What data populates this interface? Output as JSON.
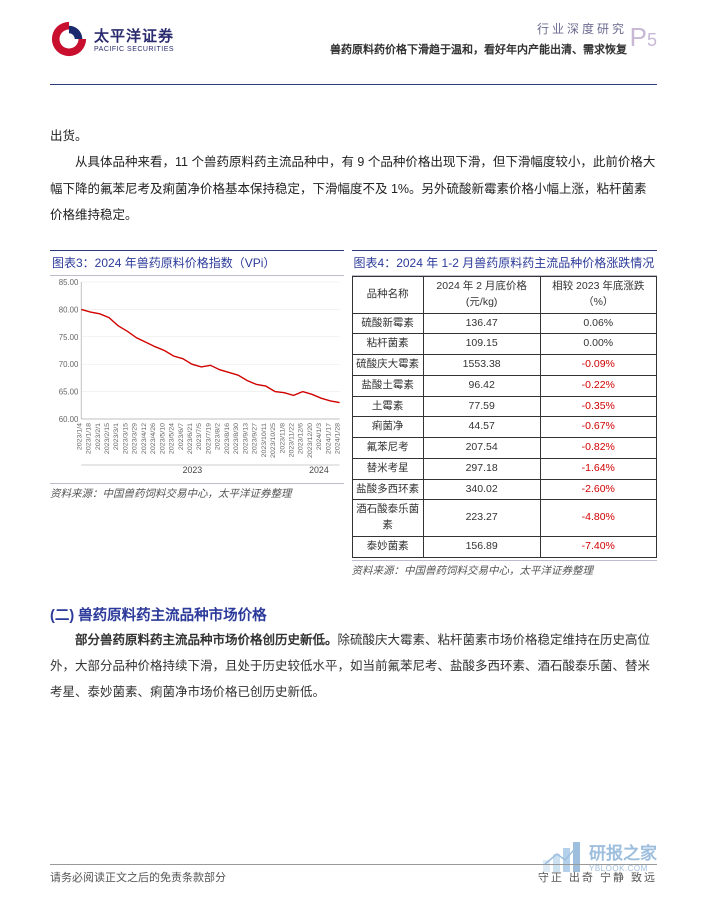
{
  "header": {
    "company_cn": "太平洋证券",
    "company_en": "PACIFIC SECURITIES",
    "category": "行业深度研究",
    "subtitle": "兽药原料药价格下滑趋于温和，看好年内产能出清、需求恢复",
    "page_prefix": "P",
    "page_number": "5",
    "logo_colors": {
      "outer": "#c8102e",
      "inner": "#1a2a6c"
    }
  },
  "paragraph1_lines": [
    "出货。",
    "从具体品种来看，11 个兽药原料药主流品种中，有 9 个品种价格出现下滑，但下滑幅度较小，此前价格大幅下降的氟苯尼考及痢菌净价格基本保持稳定，下滑幅度不及 1%。另外硫酸新霉素价格小幅上涨，粘杆菌素价格维持稳定。"
  ],
  "chart3": {
    "title": "图表3：2024 年兽药原料价格指数（VPi）",
    "type": "line",
    "line_color": "#d00000",
    "axis_color": "#bfbfbf",
    "grid_color": "#e6e6e6",
    "background_color": "#ffffff",
    "ylim": [
      60,
      85
    ],
    "ytick_step": 5,
    "yticks": [
      "60.00",
      "65.00",
      "70.00",
      "75.00",
      "80.00",
      "85.00"
    ],
    "x_labels": [
      "2023/1/4",
      "2023/1/18",
      "2023/2/1",
      "2023/2/15",
      "2023/3/1",
      "2023/3/15",
      "2023/3/29",
      "2023/4/12",
      "2023/4/26",
      "2023/5/10",
      "2023/5/24",
      "2023/6/7",
      "2023/6/21",
      "2023/7/5",
      "2023/7/19",
      "2023/8/2",
      "2023/8/16",
      "2023/8/30",
      "2023/9/13",
      "2023/9/27",
      "2023/10/11",
      "2023/10/25",
      "2023/11/8",
      "2023/11/22",
      "2023/12/6",
      "2023/12/20",
      "2024/1/3",
      "2024/1/17",
      "2024/1/28"
    ],
    "x_category_marks": {
      "2023": 0.43,
      "2024": 0.92
    },
    "values": [
      80.0,
      79.5,
      79.2,
      78.5,
      77.0,
      76.0,
      74.8,
      74.0,
      73.2,
      72.5,
      71.5,
      71.0,
      70.0,
      69.5,
      69.8,
      69.0,
      68.5,
      68.0,
      67.0,
      66.3,
      66.0,
      65.0,
      64.8,
      64.3,
      65.0,
      64.5,
      63.8,
      63.3,
      63.0
    ],
    "source": "资料来源：中国兽药饲料交易中心，太平洋证券整理"
  },
  "chart4": {
    "title": "图表4：2024 年 1-2 月兽药原料药主流品种价格涨跌情况",
    "columns": [
      "品种名称",
      "2024 年 2 月底价格(元/kg)",
      "相较 2023 年底涨跌（%）"
    ],
    "rows": [
      {
        "name": "硫酸新霉素",
        "price": "136.47",
        "chg": "0.06%",
        "neg": false
      },
      {
        "name": "粘杆菌素",
        "price": "109.15",
        "chg": "0.00%",
        "neg": false
      },
      {
        "name": "硫酸庆大霉素",
        "price": "1553.38",
        "chg": "-0.09%",
        "neg": true
      },
      {
        "name": "盐酸土霉素",
        "price": "96.42",
        "chg": "-0.22%",
        "neg": true
      },
      {
        "name": "土霉素",
        "price": "77.59",
        "chg": "-0.35%",
        "neg": true
      },
      {
        "name": "痢菌净",
        "price": "44.57",
        "chg": "-0.67%",
        "neg": true
      },
      {
        "name": "氟苯尼考",
        "price": "207.54",
        "chg": "-0.82%",
        "neg": true
      },
      {
        "name": "替米考星",
        "price": "297.18",
        "chg": "-1.64%",
        "neg": true
      },
      {
        "name": "盐酸多西环素",
        "price": "340.02",
        "chg": "-2.60%",
        "neg": true
      },
      {
        "name": "酒石酸泰乐菌素",
        "price": "223.27",
        "chg": "-4.80%",
        "neg": true
      },
      {
        "name": "泰妙菌素",
        "price": "156.89",
        "chg": "-7.40%",
        "neg": true
      }
    ],
    "neg_color": "#d00000",
    "source": "资料来源：中国兽药饲料交易中心，太平洋证券整理"
  },
  "section2": {
    "title": "(二) 兽药原料药主流品种市场价格",
    "bold_lead": "部分兽药原料药主流品种市场价格创历史新低。",
    "body": "除硫酸庆大霉素、粘杆菌素市场价格稳定维持在历史高位外，大部分品种价格持续下滑，且处于历史较低水平，如当前氟苯尼考、盐酸多西环素、酒石酸泰乐菌、替米考星、泰妙菌素、痢菌净市场价格已创历史新低。"
  },
  "footer": {
    "disclaimer": "请务必阅读正文之后的免责条款部分",
    "motto": "守正 出奇 宁静 致远"
  },
  "watermark": {
    "text_cn": "研报之家",
    "text_en": "YBLOOK.COM",
    "bar_colors": [
      "#b7d3ea",
      "#8fbfe2",
      "#5a9bd4",
      "#2b70b8"
    ]
  }
}
